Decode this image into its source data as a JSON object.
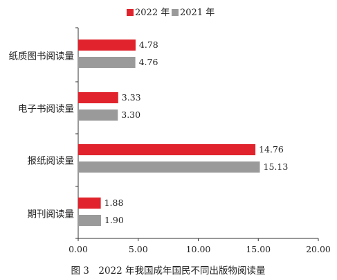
{
  "chart_data": {
    "type": "bar",
    "orientation": "horizontal",
    "title": "",
    "caption": "图 3　2022 年我国成年国民不同出版物阅读量",
    "categories": [
      "纸质图书阅读量",
      "电子书阅读量",
      "报纸阅读量",
      "期刊阅读量"
    ],
    "series": [
      {
        "name": "2022 年",
        "color": "#e0232c",
        "values": [
          4.78,
          3.33,
          14.76,
          1.88
        ]
      },
      {
        "name": "2021 年",
        "color": "#9a9a9a",
        "values": [
          4.76,
          3.3,
          15.13,
          1.9
        ]
      }
    ],
    "value_labels": [
      [
        "4.78",
        "3.33",
        "14.76",
        "1.88"
      ],
      [
        "4.76",
        "3.30",
        "15.13",
        "1.90"
      ]
    ],
    "xlim": [
      0,
      20
    ],
    "xticks": [
      "0.00",
      "5.00",
      "10.00",
      "15.00",
      "20.00"
    ],
    "grid": false,
    "legend_position": "top-center"
  }
}
